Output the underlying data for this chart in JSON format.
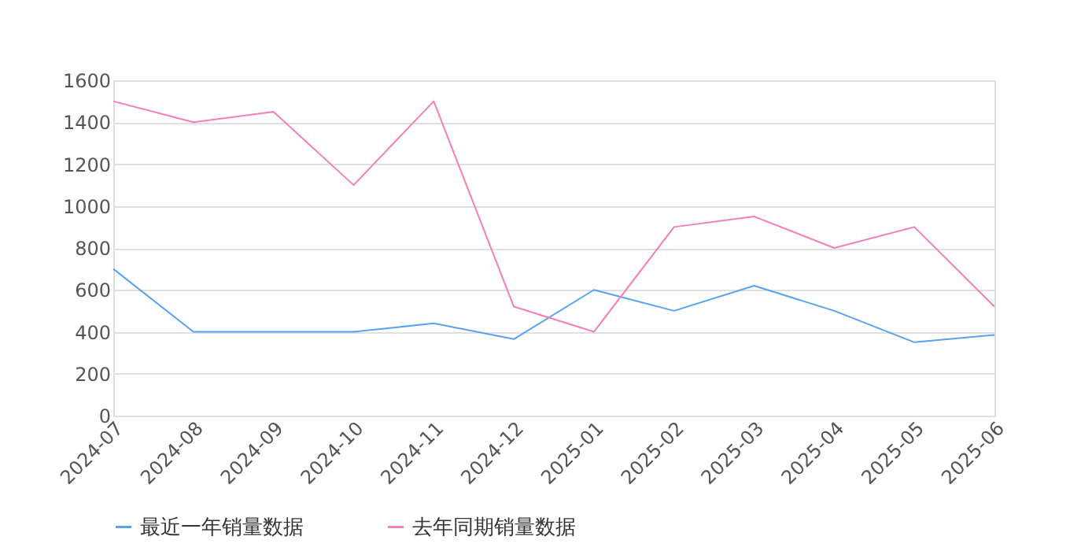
{
  "chart_data": {
    "type": "line",
    "categories": [
      "2024-07",
      "2024-08",
      "2024-09",
      "2024-10",
      "2024-11",
      "2024-12",
      "2025-01",
      "2025-02",
      "2025-03",
      "2025-04",
      "2025-05",
      "2025-06"
    ],
    "series": [
      {
        "name": "最近一年销量数据",
        "color": "#5aa2f0",
        "values": [
          700,
          400,
          400,
          400,
          440,
          365,
          600,
          500,
          620,
          500,
          350,
          385
        ]
      },
      {
        "name": "去年同期销量数据",
        "color": "#f47eb5",
        "values": [
          1500,
          1400,
          1450,
          1100,
          1500,
          520,
          400,
          900,
          950,
          800,
          900,
          520
        ]
      }
    ],
    "ylim": [
      0,
      1600
    ],
    "yticks": [
      0,
      200,
      400,
      600,
      800,
      1000,
      1200,
      1400,
      1600
    ],
    "grid": "y",
    "legend": "bottom",
    "marker": "none",
    "line_style": "solid"
  }
}
